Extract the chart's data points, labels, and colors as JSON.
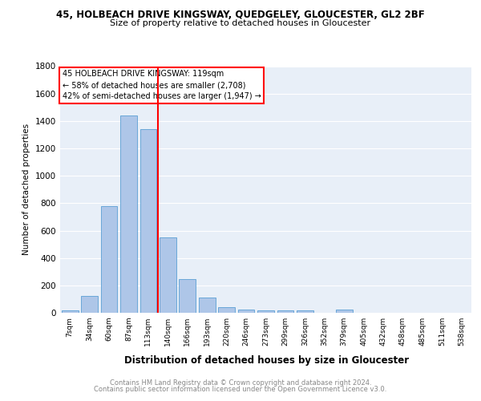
{
  "title1": "45, HOLBEACH DRIVE KINGSWAY, QUEDGELEY, GLOUCESTER, GL2 2BF",
  "title2": "Size of property relative to detached houses in Gloucester",
  "xlabel": "Distribution of detached houses by size in Gloucester",
  "ylabel": "Number of detached properties",
  "categories": [
    "7sqm",
    "34sqm",
    "60sqm",
    "87sqm",
    "113sqm",
    "140sqm",
    "166sqm",
    "193sqm",
    "220sqm",
    "246sqm",
    "273sqm",
    "299sqm",
    "326sqm",
    "352sqm",
    "379sqm",
    "405sqm",
    "432sqm",
    "458sqm",
    "485sqm",
    "511sqm",
    "538sqm"
  ],
  "values": [
    15,
    125,
    780,
    1440,
    1340,
    550,
    245,
    110,
    40,
    25,
    20,
    15,
    15,
    0,
    25,
    0,
    0,
    0,
    0,
    0,
    0
  ],
  "bar_color": "#aec6e8",
  "bar_edge_color": "#5a9fd4",
  "vline_x": 4.5,
  "vline_color": "red",
  "annotation_line1": "45 HOLBEACH DRIVE KINGSWAY: 119sqm",
  "annotation_line2": "← 58% of detached houses are smaller (2,708)",
  "annotation_line3": "42% of semi-detached houses are larger (1,947) →",
  "ylim": [
    0,
    1800
  ],
  "yticks": [
    0,
    200,
    400,
    600,
    800,
    1000,
    1200,
    1400,
    1600,
    1800
  ],
  "footer1": "Contains HM Land Registry data © Crown copyright and database right 2024.",
  "footer2": "Contains public sector information licensed under the Open Government Licence v3.0.",
  "plot_bg_color": "#e8eff8"
}
